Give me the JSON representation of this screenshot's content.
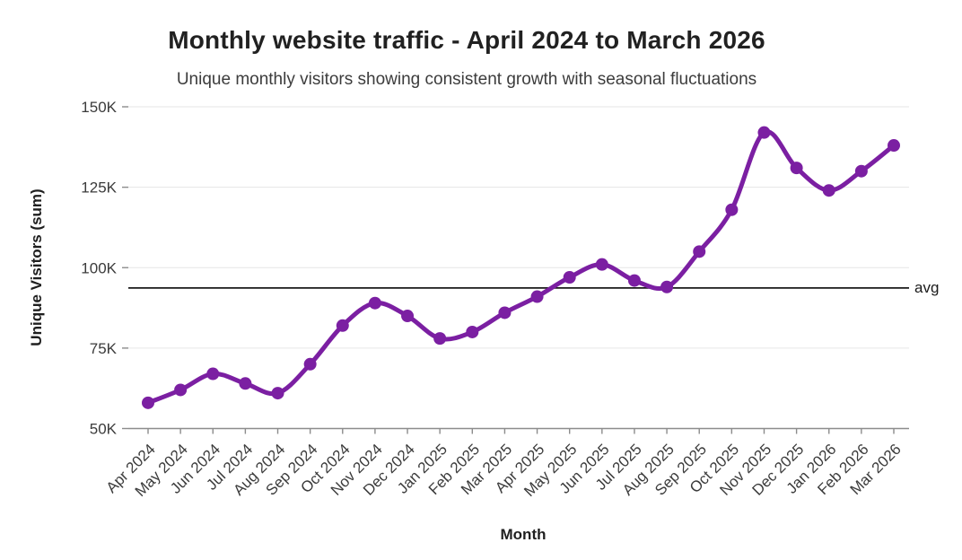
{
  "header": {
    "title": "Monthly website traffic - April 2024 to March 2026",
    "subtitle": "Unique monthly visitors showing consistent growth with seasonal fluctuations"
  },
  "chart_data": {
    "type": "line",
    "title": "Monthly website traffic - April 2024 to March 2026",
    "subtitle": "Unique monthly visitors showing consistent growth with seasonal fluctuations",
    "xlabel": "Month",
    "ylabel": "Unique Visitors (sum)",
    "x": [
      "Apr 2024",
      "May 2024",
      "Jun 2024",
      "Jul 2024",
      "Aug 2024",
      "Sep 2024",
      "Oct 2024",
      "Nov 2024",
      "Dec 2024",
      "Jan 2025",
      "Feb 2025",
      "Mar 2025",
      "Apr 2025",
      "May 2025",
      "Jun 2025",
      "Jul 2025",
      "Aug 2025",
      "Sep 2025",
      "Oct 2025",
      "Nov 2025",
      "Dec 2025",
      "Jan 2026",
      "Feb 2026",
      "Mar 2026"
    ],
    "series": [
      {
        "name": "Unique Visitors (sum)",
        "values": [
          58000,
          62000,
          67000,
          64000,
          61000,
          70000,
          82000,
          89000,
          85000,
          78000,
          80000,
          86000,
          91000,
          97000,
          101000,
          96000,
          94000,
          105000,
          118000,
          142000,
          131000,
          124000,
          130000,
          138000
        ]
      }
    ],
    "ylim": [
      50000,
      150000
    ],
    "yticks": [
      {
        "value": 50000,
        "label": "50K"
      },
      {
        "value": 75000,
        "label": "75K"
      },
      {
        "value": 100000,
        "label": "100K"
      },
      {
        "value": 125000,
        "label": "125K"
      },
      {
        "value": 150000,
        "label": "150K"
      }
    ],
    "grid": "horizontal",
    "legend": "none",
    "annotations": [
      {
        "type": "hline",
        "value": 93700,
        "label": "avg"
      }
    ],
    "colors": {
      "line": "#7B1FA2",
      "marker": "#7B1FA2",
      "avg_line": "#1a1a1a",
      "grid": "#e6e6e6",
      "axis": "#8c8c8c",
      "tick_text": "#3b3b3b",
      "title_text": "#212121"
    }
  }
}
